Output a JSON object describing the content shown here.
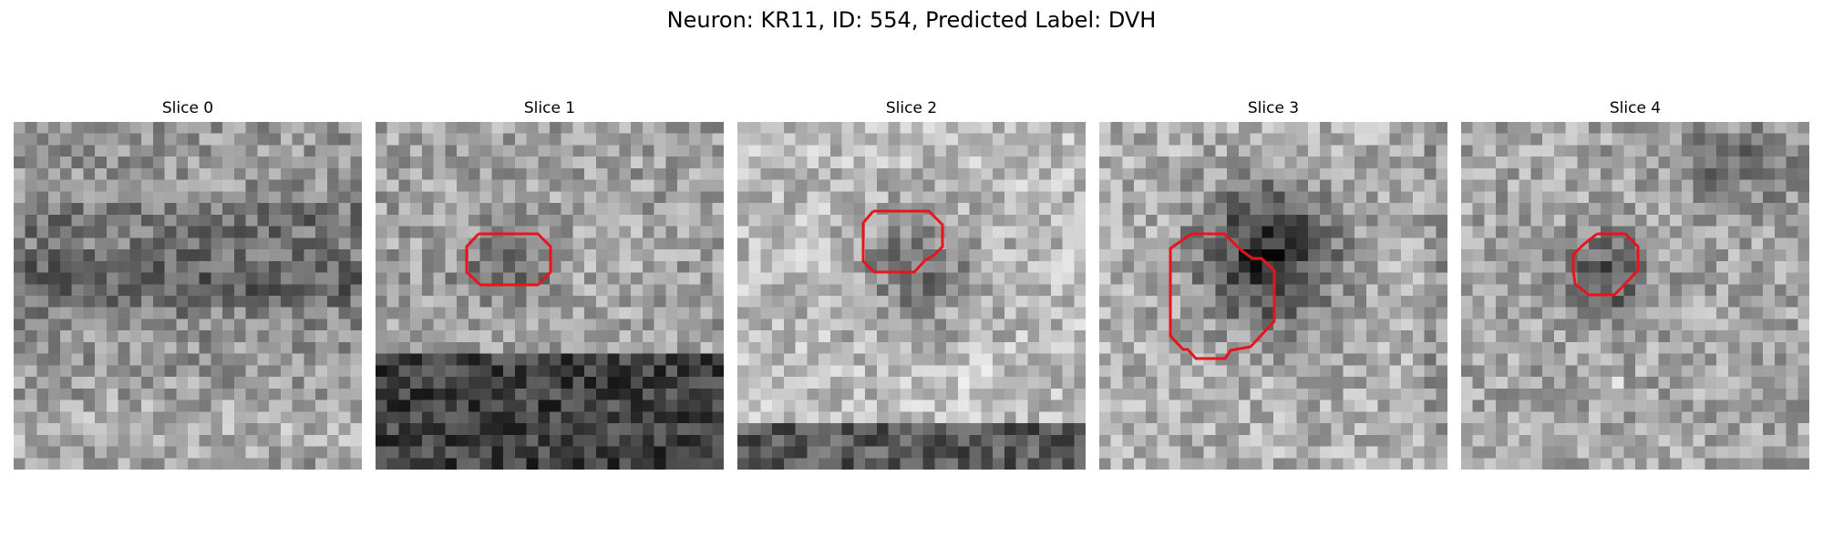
{
  "figure": {
    "title": "Neuron: KR11, ID: 554, Predicted Label: DVH"
  },
  "colors": {
    "contour": "#e8141c",
    "background": "#ffffff"
  },
  "panels": [
    {
      "title": "Slice 0",
      "has_contour": false
    },
    {
      "title": "Slice 1",
      "has_contour": true
    },
    {
      "title": "Slice 2",
      "has_contour": true
    },
    {
      "title": "Slice 3",
      "has_contour": true
    },
    {
      "title": "Slice 4",
      "has_contour": true
    }
  ]
}
